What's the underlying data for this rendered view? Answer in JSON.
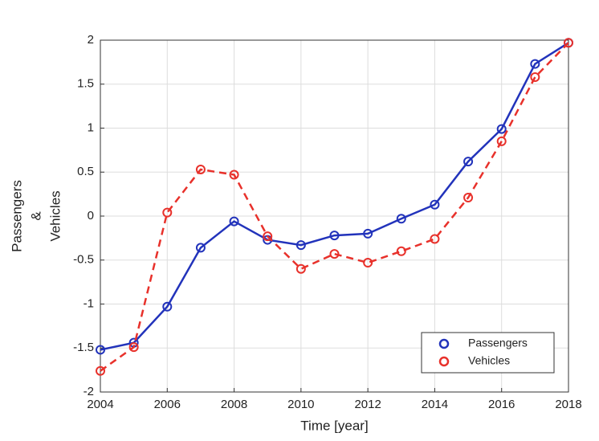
{
  "chart_data": {
    "type": "line",
    "xlabel": "Time [year]",
    "ylabel": [
      "Passengers",
      "&",
      "Vehicles"
    ],
    "x": [
      2004,
      2005,
      2006,
      2007,
      2008,
      2009,
      2010,
      2011,
      2012,
      2013,
      2014,
      2015,
      2016,
      2017,
      2018
    ],
    "series": [
      {
        "name": "Passengers",
        "color": "#2233bb",
        "dash": false,
        "values": [
          -1.52,
          -1.44,
          -1.03,
          -0.36,
          -0.06,
          -0.27,
          -0.33,
          -0.22,
          -0.2,
          -0.03,
          0.13,
          0.62,
          0.99,
          1.73,
          1.97
        ]
      },
      {
        "name": "Vehicles",
        "color": "#e8312b",
        "dash": true,
        "values": [
          -1.76,
          -1.49,
          0.04,
          0.53,
          0.47,
          -0.23,
          -0.6,
          -0.43,
          -0.53,
          -0.4,
          -0.26,
          0.21,
          0.85,
          1.58,
          1.97
        ]
      }
    ],
    "xlim": [
      2004,
      2018
    ],
    "xticks": [
      2004,
      2006,
      2008,
      2010,
      2012,
      2014,
      2016,
      2018
    ],
    "ylim": [
      -2,
      2
    ],
    "yticks": [
      -2,
      -1.5,
      -1,
      -0.5,
      0,
      0.5,
      1,
      1.5,
      2
    ],
    "grid": true,
    "legend": "lower-right"
  }
}
